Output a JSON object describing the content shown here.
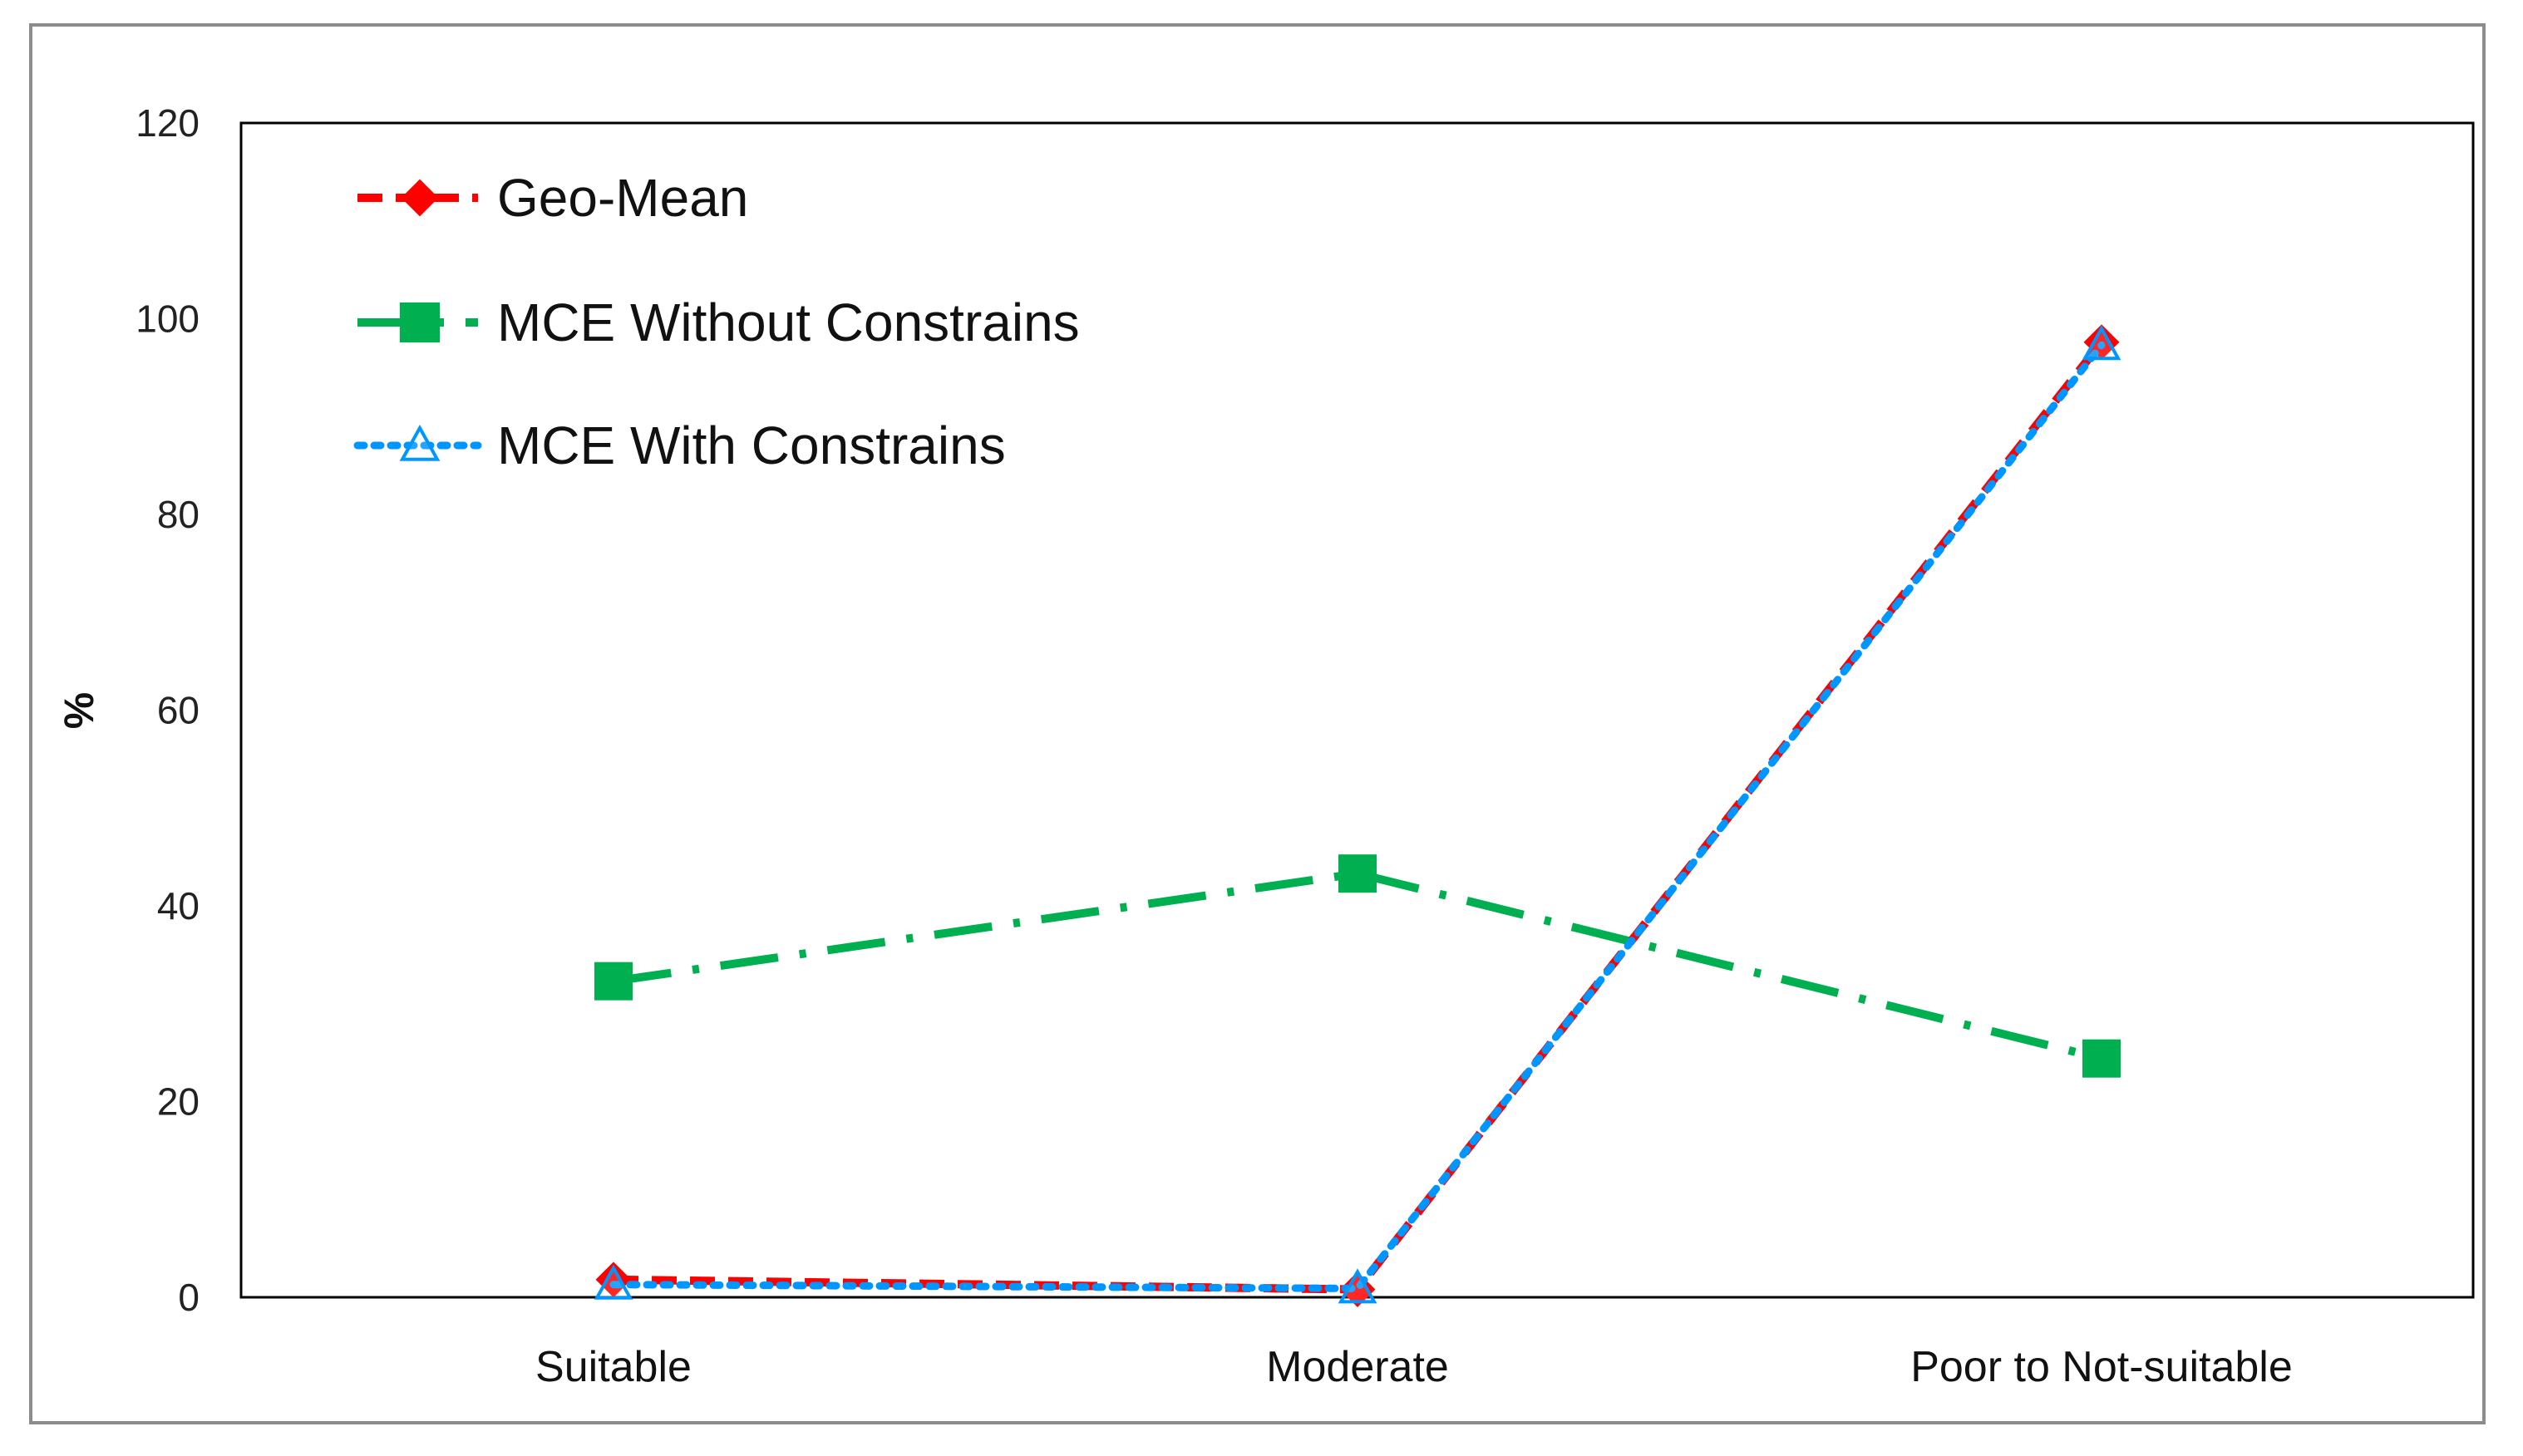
{
  "chart_data": {
    "type": "line",
    "title": "",
    "xlabel": "",
    "ylabel": "%",
    "ylim": [
      0,
      120
    ],
    "yticks": [
      0,
      20,
      40,
      60,
      80,
      100,
      120
    ],
    "categories": [
      "Suitable",
      "Moderate",
      "Poor to Not-suitable"
    ],
    "legend_position": "top-left",
    "grid": false,
    "series": [
      {
        "name": "Geo-Mean",
        "values": [
          1.8,
          0.8,
          97.6
        ],
        "color": "#ff0000",
        "line_style": "dashed",
        "marker": "diamond"
      },
      {
        "name": "MCE Without Constrains",
        "values": [
          32.3,
          43.3,
          24.4
        ],
        "color": "#00b050",
        "line_style": "dash-dot",
        "marker": "square"
      },
      {
        "name": "MCE With Constrains",
        "values": [
          1.3,
          0.9,
          97.3
        ],
        "color": "#0096ff",
        "line_style": "dotted",
        "marker": "triangle-open"
      }
    ]
  }
}
